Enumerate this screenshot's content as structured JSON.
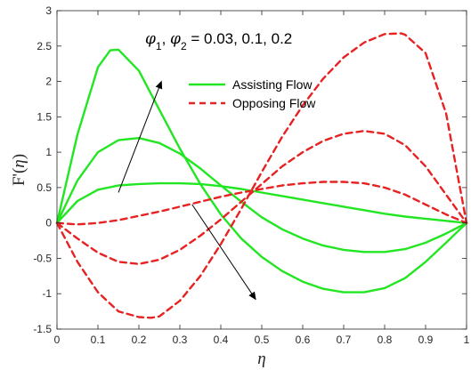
{
  "chart_data": {
    "type": "line",
    "xlabel": "η",
    "ylabel": "F'(η)",
    "xlim": [
      0,
      1
    ],
    "ylim": [
      -1.5,
      3
    ],
    "xticks": [
      "0",
      "0.1",
      "0.2",
      "0.3",
      "0.4",
      "0.5",
      "0.6",
      "0.7",
      "0.8",
      "0.9",
      "1"
    ],
    "yticks": [
      "-1.5",
      "-1",
      "-0.5",
      "0",
      "0.5",
      "1",
      "1.5",
      "2",
      "2.5",
      "3"
    ],
    "grid": false,
    "legend_position": "top-right",
    "legend": [
      {
        "label": "Assisting Flow",
        "color": "#22e622",
        "style": "solid"
      },
      {
        "label": "Opposing Flow",
        "color": "#e62222",
        "style": "dashed"
      }
    ],
    "annotation": "φ1, φ2 = 0.03, 0.1, 0.2",
    "series": [
      {
        "group": "assisting",
        "phi": 0.03,
        "color": "#22e622",
        "style": "solid",
        "x": [
          0,
          0.05,
          0.1,
          0.15,
          0.2,
          0.25,
          0.3,
          0.35,
          0.4,
          0.45,
          0.5,
          0.55,
          0.6,
          0.65,
          0.7,
          0.75,
          0.8,
          0.85,
          0.9,
          0.95,
          1
        ],
        "y": [
          0,
          0.31,
          0.47,
          0.53,
          0.55,
          0.56,
          0.56,
          0.55,
          0.52,
          0.48,
          0.43,
          0.38,
          0.33,
          0.28,
          0.23,
          0.18,
          0.13,
          0.09,
          0.06,
          0.03,
          0
        ]
      },
      {
        "group": "assisting",
        "phi": 0.1,
        "color": "#22e622",
        "style": "solid",
        "x": [
          0,
          0.05,
          0.1,
          0.15,
          0.2,
          0.25,
          0.3,
          0.35,
          0.4,
          0.45,
          0.5,
          0.55,
          0.6,
          0.65,
          0.7,
          0.75,
          0.8,
          0.85,
          0.9,
          0.95,
          1
        ],
        "y": [
          0,
          0.6,
          1.0,
          1.17,
          1.2,
          1.13,
          0.98,
          0.77,
          0.53,
          0.3,
          0.08,
          -0.09,
          -0.22,
          -0.32,
          -0.38,
          -0.41,
          -0.41,
          -0.37,
          -0.28,
          -0.15,
          0
        ]
      },
      {
        "group": "assisting",
        "phi": 0.2,
        "color": "#22e622",
        "style": "solid",
        "x": [
          0,
          0.05,
          0.1,
          0.13,
          0.15,
          0.2,
          0.25,
          0.3,
          0.35,
          0.4,
          0.45,
          0.5,
          0.55,
          0.6,
          0.65,
          0.7,
          0.75,
          0.8,
          0.85,
          0.9,
          0.95,
          1
        ],
        "y": [
          0,
          1.25,
          2.2,
          2.44,
          2.45,
          2.15,
          1.6,
          1.05,
          0.55,
          0.12,
          -0.22,
          -0.48,
          -0.68,
          -0.83,
          -0.93,
          -0.98,
          -0.98,
          -0.92,
          -0.78,
          -0.55,
          -0.28,
          0
        ]
      },
      {
        "group": "opposing",
        "phi": 0.03,
        "color": "#e62222",
        "style": "dashed",
        "x": [
          0,
          0.05,
          0.1,
          0.15,
          0.2,
          0.25,
          0.3,
          0.35,
          0.4,
          0.45,
          0.5,
          0.55,
          0.6,
          0.65,
          0.7,
          0.75,
          0.8,
          0.85,
          0.9,
          0.95,
          1
        ],
        "y": [
          0,
          -0.02,
          0,
          0.04,
          0.1,
          0.16,
          0.23,
          0.3,
          0.37,
          0.43,
          0.48,
          0.53,
          0.56,
          0.58,
          0.58,
          0.56,
          0.5,
          0.4,
          0.26,
          0.12,
          0
        ]
      },
      {
        "group": "opposing",
        "phi": 0.1,
        "color": "#e62222",
        "style": "dashed",
        "x": [
          0,
          0.05,
          0.1,
          0.15,
          0.2,
          0.25,
          0.3,
          0.35,
          0.4,
          0.45,
          0.5,
          0.55,
          0.6,
          0.65,
          0.7,
          0.75,
          0.8,
          0.85,
          0.9,
          0.95,
          1
        ],
        "y": [
          0,
          -0.22,
          -0.42,
          -0.55,
          -0.58,
          -0.52,
          -0.38,
          -0.18,
          0.05,
          0.3,
          0.55,
          0.8,
          1.0,
          1.16,
          1.26,
          1.3,
          1.26,
          1.1,
          0.8,
          0.4,
          0
        ]
      },
      {
        "group": "opposing",
        "phi": 0.2,
        "color": "#e62222",
        "style": "dashed",
        "x": [
          0,
          0.05,
          0.1,
          0.15,
          0.2,
          0.23,
          0.25,
          0.3,
          0.35,
          0.4,
          0.45,
          0.5,
          0.55,
          0.6,
          0.65,
          0.7,
          0.75,
          0.8,
          0.84,
          0.85,
          0.9,
          0.95,
          1
        ],
        "y": [
          0,
          -0.55,
          -0.98,
          -1.25,
          -1.33,
          -1.34,
          -1.32,
          -1.1,
          -0.75,
          -0.3,
          0.2,
          0.72,
          1.22,
          1.66,
          2.04,
          2.34,
          2.55,
          2.67,
          2.68,
          2.66,
          2.4,
          1.55,
          0
        ]
      }
    ],
    "arrows": [
      {
        "from": [
          0.15,
          0.43
        ],
        "to": [
          0.255,
          2.0
        ]
      },
      {
        "from": [
          0.33,
          0.26
        ],
        "to": [
          0.485,
          -1.08
        ]
      }
    ]
  }
}
